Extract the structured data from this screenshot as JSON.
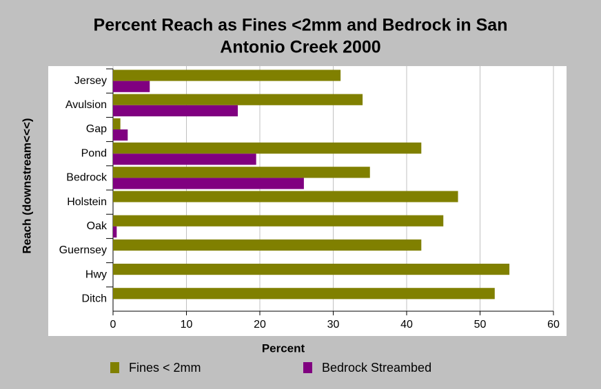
{
  "chart_data": {
    "type": "barh",
    "title": [
      "Percent Reach as Fines <2mm and Bedrock in San",
      "Antonio Creek 2000"
    ],
    "x_label": "Percent",
    "y_label": "Reach (downstream<<<)",
    "categories": [
      "Jersey",
      "Avulsion",
      "Gap",
      "Pond",
      "Bedrock",
      "Holstein",
      "Oak",
      "Guernsey",
      "Hwy",
      "Ditch"
    ],
    "series": [
      {
        "name": "Fines < 2mm",
        "color": "#808000",
        "values": [
          31,
          34,
          1,
          42,
          35,
          47,
          45,
          42,
          54,
          52
        ]
      },
      {
        "name": "Bedrock Streambed",
        "color": "#800080",
        "values": [
          5,
          17,
          2,
          19.5,
          26,
          0,
          0.5,
          0,
          0,
          0
        ]
      }
    ],
    "xlim": [
      0,
      60
    ],
    "xticks": [
      0,
      10,
      20,
      30,
      40,
      50,
      60
    ],
    "grid": true
  }
}
